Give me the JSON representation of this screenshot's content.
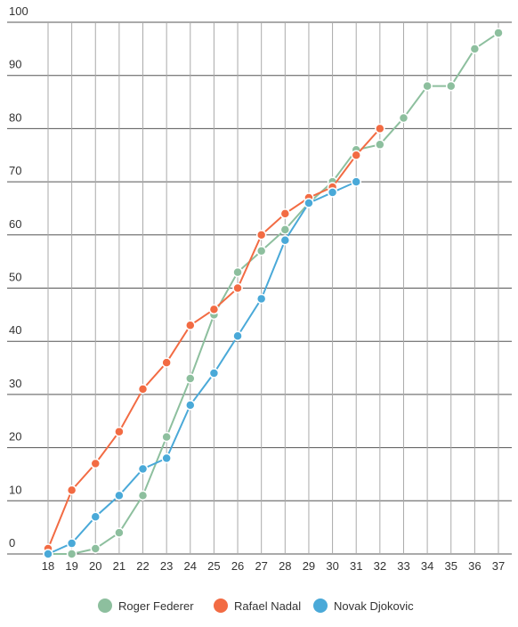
{
  "chart_data": {
    "type": "line",
    "x": [
      18,
      19,
      20,
      21,
      22,
      23,
      24,
      25,
      26,
      27,
      28,
      29,
      30,
      31,
      32,
      33,
      34,
      35,
      36,
      37
    ],
    "xlim": [
      18,
      37
    ],
    "xticks": [
      18,
      19,
      20,
      21,
      22,
      23,
      24,
      25,
      26,
      27,
      28,
      29,
      30,
      31,
      32,
      33,
      34,
      35,
      36,
      37
    ],
    "ylim": [
      0,
      100
    ],
    "yticks": [
      0,
      10,
      20,
      30,
      40,
      50,
      60,
      70,
      80,
      90,
      100
    ],
    "grid": true,
    "legend": "bottom",
    "series": [
      {
        "name": "Roger Federer",
        "color": "#8dbf9e",
        "values": [
          0,
          0,
          1,
          4,
          11,
          22,
          33,
          45,
          53,
          57,
          61,
          66,
          70,
          76,
          77,
          82,
          88,
          88,
          95,
          98
        ]
      },
      {
        "name": "Rafael Nadal",
        "color": "#f26b43",
        "values": [
          1,
          12,
          17,
          23,
          31,
          36,
          43,
          46,
          50,
          60,
          64,
          67,
          69,
          75,
          80,
          null,
          null,
          null,
          null,
          null
        ]
      },
      {
        "name": "Novak Djokovic",
        "color": "#4aa9d8",
        "values": [
          0,
          2,
          7,
          11,
          16,
          18,
          28,
          34,
          41,
          48,
          59,
          66,
          68,
          70,
          null,
          null,
          null,
          null,
          null,
          null
        ]
      }
    ]
  }
}
